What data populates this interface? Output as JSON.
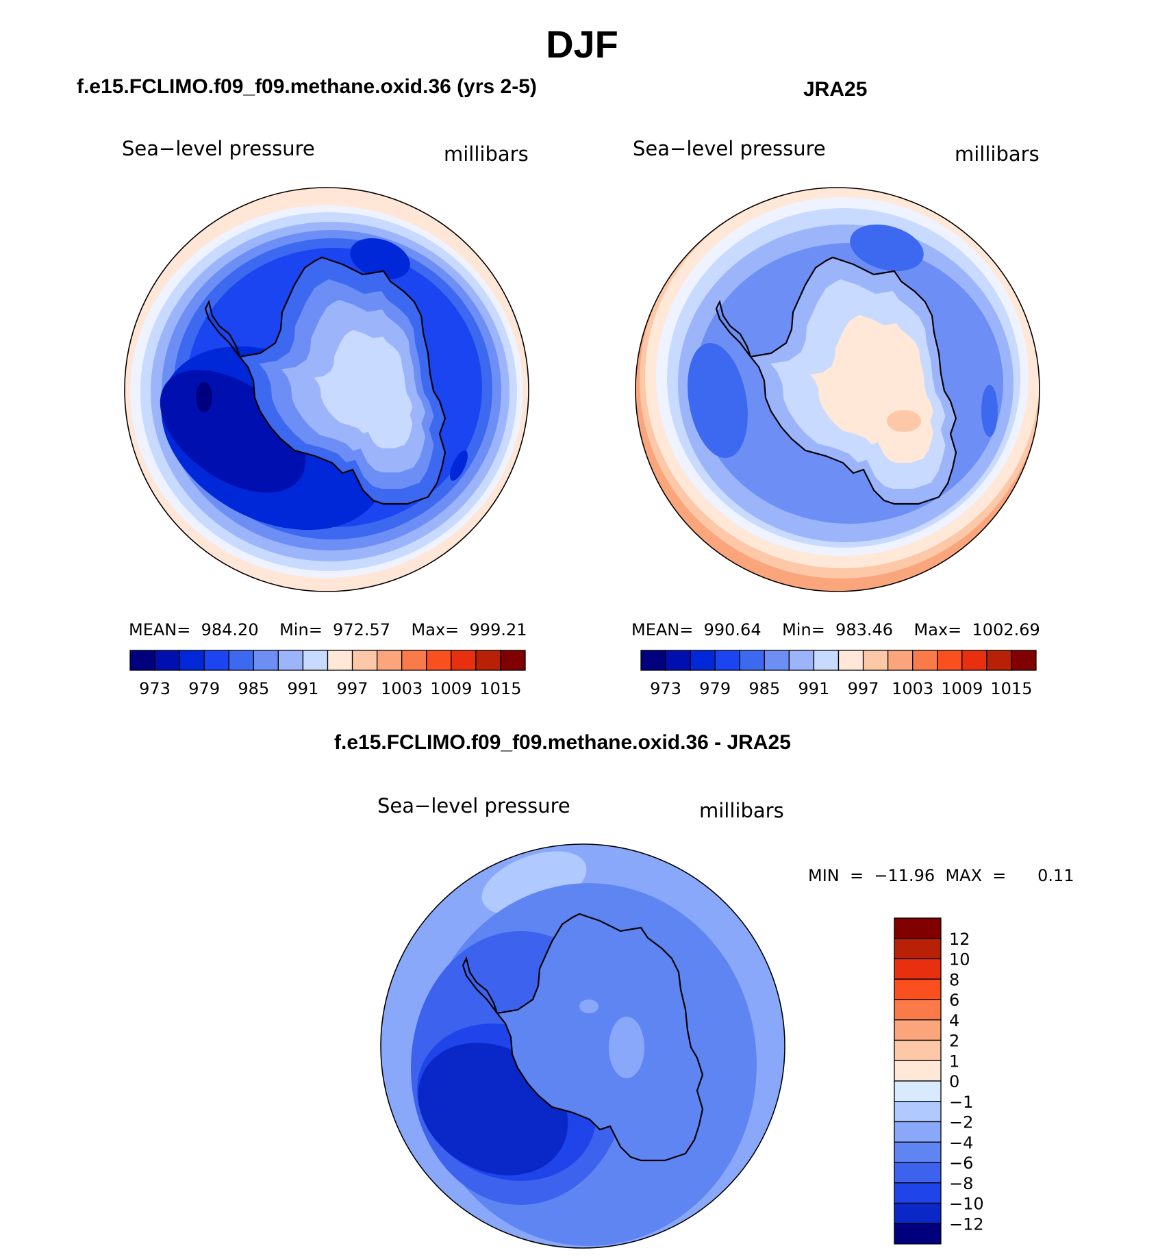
{
  "page": {
    "season": "DJF",
    "left_case": "f.e15.FCLIMO.f09_f09.methane.oxid.36 (yrs 2-5)",
    "right_case": "JRA25",
    "diff_case": "f.e15.FCLIMO.f09_f09.methane.oxid.36 - JRA25"
  },
  "panels": {
    "model": {
      "variable": "Sea−level pressure",
      "units": "millibars",
      "stats": "MEAN=  984.20    Min=  972.57    Max=  999.21",
      "mean": 984.2,
      "min": 972.57,
      "max": 999.21
    },
    "obs": {
      "variable": "Sea−level pressure",
      "units": "millibars",
      "stats": "MEAN=  990.64    Min=  983.46    Max=  1002.69",
      "mean": 990.64,
      "min": 983.46,
      "max": 1002.69
    },
    "diff": {
      "variable": "Sea−level pressure",
      "units": "millibars",
      "stats": "MIN  =  −11.96  MAX  =      0.11",
      "min": -11.96,
      "max": 0.11
    }
  },
  "colorbar_abs": {
    "colors": [
      "#00007f",
      "#0010b0",
      "#0028d8",
      "#1a45f0",
      "#3c69f0",
      "#6d8ff5",
      "#9cb5fa",
      "#c8daff",
      "#ffe8d8",
      "#fcc8a8",
      "#fba57c",
      "#fa7a4a",
      "#fa5020",
      "#e83010",
      "#b82008",
      "#800000"
    ],
    "labels": [
      "973",
      "979",
      "985",
      "991",
      "997",
      "1003",
      "1009",
      "1015"
    ]
  },
  "colorbar_diff": {
    "colors": [
      "#800000",
      "#b82008",
      "#e83010",
      "#fa5020",
      "#fa7a4a",
      "#fba57c",
      "#fcc8a8",
      "#ffe8d8",
      "#d8eaff",
      "#b0caff",
      "#8aa8fa",
      "#5f85f2",
      "#3c62ee",
      "#1f45ea",
      "#0a28c8",
      "#00007f"
    ],
    "labels": [
      "12",
      "10",
      "8",
      "6",
      "4",
      "2",
      "1",
      "0",
      "−1",
      "−2",
      "−4",
      "−6",
      "−8",
      "−10",
      "−12"
    ]
  }
}
